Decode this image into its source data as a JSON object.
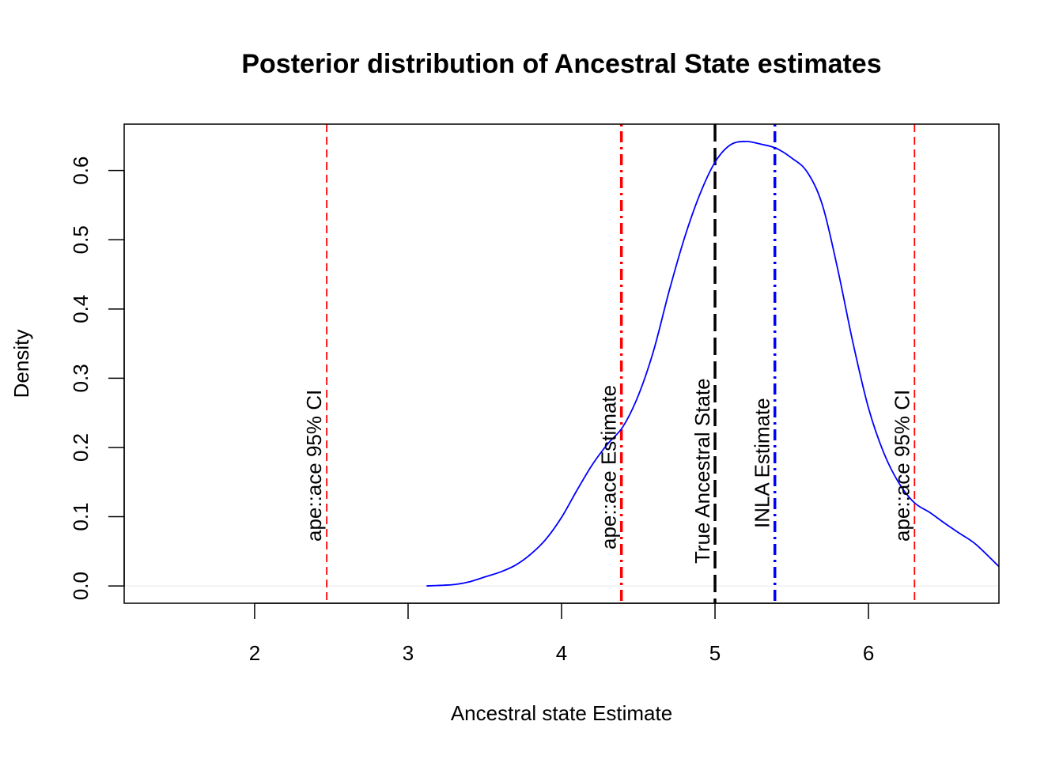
{
  "chart_data": {
    "type": "line",
    "title": "Posterior distribution of Ancestral State estimates",
    "xlabel": "Ancestral state Estimate",
    "ylabel": "Density",
    "xlim": [
      1.15,
      6.85
    ],
    "ylim": [
      -0.025,
      0.667
    ],
    "xticks": [
      2,
      3,
      4,
      5,
      6
    ],
    "yticks": [
      0.0,
      0.1,
      0.2,
      0.3,
      0.4,
      0.5,
      0.6
    ],
    "xtick_labels": [
      "2",
      "3",
      "4",
      "5",
      "6"
    ],
    "ytick_labels": [
      "0.0",
      "0.1",
      "0.2",
      "0.3",
      "0.4",
      "0.5",
      "0.6"
    ],
    "series": [
      {
        "color": "#0000ff",
        "x": [
          3.12,
          3.3,
          3.4,
          3.5,
          3.6,
          3.7,
          3.8,
          3.9,
          4.0,
          4.1,
          4.2,
          4.3,
          4.4,
          4.5,
          4.6,
          4.7,
          4.8,
          4.9,
          5.0,
          5.1,
          5.2,
          5.3,
          5.4,
          5.5,
          5.6,
          5.7,
          5.8,
          5.9,
          6.0,
          6.1,
          6.2,
          6.3,
          6.4,
          6.5,
          6.6,
          6.7,
          6.85
        ],
        "y": [
          0.0,
          0.002,
          0.006,
          0.013,
          0.02,
          0.03,
          0.046,
          0.068,
          0.099,
          0.138,
          0.175,
          0.205,
          0.23,
          0.275,
          0.34,
          0.425,
          0.502,
          0.565,
          0.612,
          0.637,
          0.642,
          0.638,
          0.632,
          0.618,
          0.598,
          0.55,
          0.457,
          0.35,
          0.257,
          0.192,
          0.148,
          0.12,
          0.106,
          0.09,
          0.075,
          0.06,
          0.028
        ]
      }
    ],
    "vlines": [
      {
        "x": 2.47,
        "label": "ape::ace 95% CI",
        "color": "#ff0000",
        "style": "dashed",
        "weight": "thin"
      },
      {
        "x": 4.39,
        "label": "ape::ace Estimate",
        "color": "#ff0000",
        "style": "dotdash",
        "weight": "thick"
      },
      {
        "x": 5.0,
        "label": "True Ancestral State",
        "color": "#000000",
        "style": "longdash",
        "weight": "thick"
      },
      {
        "x": 5.39,
        "label": "INLA Estimate",
        "color": "#0000ff",
        "style": "dotdash",
        "weight": "thick"
      },
      {
        "x": 6.3,
        "label": "ape::ace 95% CI",
        "color": "#ff0000",
        "style": "dashed",
        "weight": "thin"
      }
    ],
    "hline": {
      "y": 0.0,
      "color": "#e6e6e6"
    },
    "grid": false,
    "legend": "none"
  }
}
